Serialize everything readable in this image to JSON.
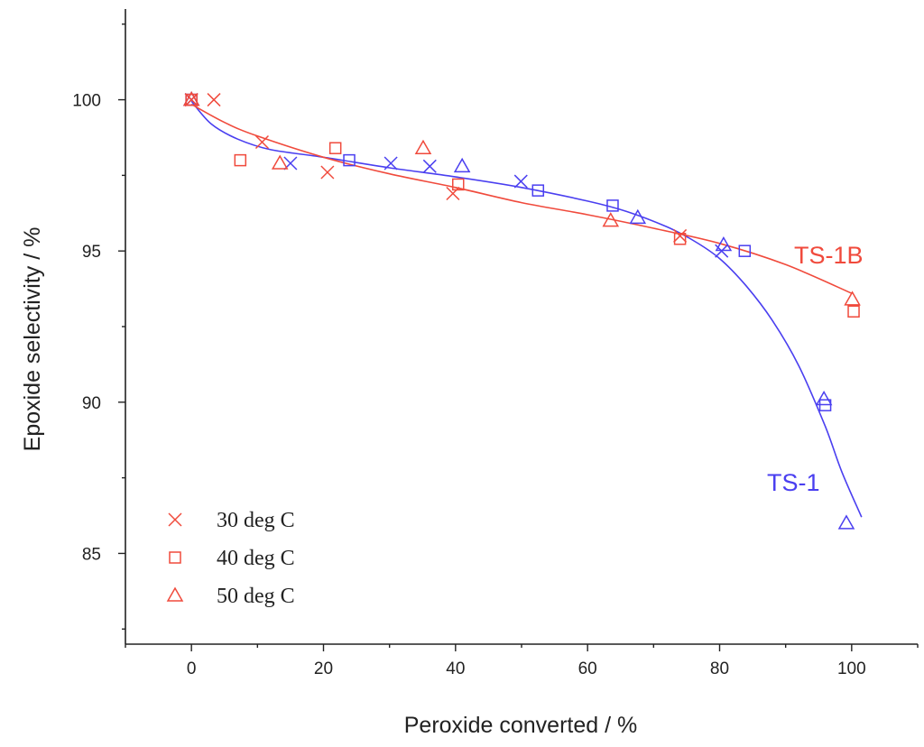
{
  "chart_data": {
    "type": "scatter",
    "title": "",
    "xlabel": "Peroxide converted / %",
    "ylabel": "Epoxide selectivity / %",
    "xlim": [
      -10,
      110
    ],
    "ylim": [
      82,
      103
    ],
    "xticks": [
      0,
      20,
      40,
      60,
      80,
      100
    ],
    "yticks": [
      85,
      90,
      95,
      100
    ],
    "grid": false,
    "legend_position": "bottom-left",
    "legend": [
      {
        "label": "30 deg C",
        "marker": "x"
      },
      {
        "label": "40 deg C",
        "marker": "square"
      },
      {
        "label": "50 deg C",
        "marker": "triangle"
      }
    ],
    "colors": {
      "TS-1B": "#f04a3c",
      "TS-1": "#4a3ff0",
      "axis": "#222222"
    },
    "series": [
      {
        "name": "TS-1B",
        "label": "TS-1B",
        "points": {
          "30 deg C": [
            [
              0,
              100
            ],
            [
              3.4,
              100
            ],
            [
              10.7,
              98.6
            ],
            [
              20.6,
              97.6
            ],
            [
              39.6,
              96.9
            ],
            [
              74,
              95.5
            ]
          ],
          "40 deg C": [
            [
              0,
              100
            ],
            [
              7.4,
              98
            ],
            [
              21.8,
              98.4
            ],
            [
              40.4,
              97.2
            ],
            [
              74,
              95.4
            ],
            [
              100.3,
              93
            ]
          ],
          "50 deg C": [
            [
              0,
              100
            ],
            [
              13.4,
              97.9
            ],
            [
              35.1,
              98.4
            ],
            [
              63.5,
              96
            ],
            [
              100.1,
              93.4
            ]
          ]
        },
        "fit": [
          [
            0,
            99.85
          ],
          [
            5,
            99.25
          ],
          [
            10,
            98.8
          ],
          [
            20,
            98.1
          ],
          [
            30,
            97.55
          ],
          [
            40,
            97.1
          ],
          [
            50,
            96.6
          ],
          [
            60,
            96.2
          ],
          [
            70,
            95.75
          ],
          [
            80,
            95.25
          ],
          [
            90,
            94.55
          ],
          [
            100,
            93.6
          ]
        ]
      },
      {
        "name": "TS-1",
        "label": "TS-1",
        "points": {
          "30 deg C": [
            [
              0,
              100
            ],
            [
              15,
              97.9
            ],
            [
              30.2,
              97.9
            ],
            [
              36.1,
              97.8
            ],
            [
              49.9,
              97.3
            ],
            [
              80.3,
              95
            ]
          ],
          "40 deg C": [
            [
              0,
              100
            ],
            [
              23.9,
              98
            ],
            [
              52.5,
              97
            ],
            [
              63.8,
              96.5
            ],
            [
              83.8,
              95
            ],
            [
              96,
              89.9
            ]
          ],
          "50 deg C": [
            [
              0,
              100
            ],
            [
              41,
              97.8
            ],
            [
              67.6,
              96.1
            ],
            [
              80.6,
              95.2
            ],
            [
              95.8,
              90.1
            ],
            [
              99.2,
              86
            ]
          ]
        },
        "fit": [
          [
            0,
            99.95
          ],
          [
            3,
            99.2
          ],
          [
            7,
            98.7
          ],
          [
            12,
            98.35
          ],
          [
            20,
            98.1
          ],
          [
            30,
            97.75
          ],
          [
            40,
            97.45
          ],
          [
            50,
            97.1
          ],
          [
            60,
            96.65
          ],
          [
            66,
            96.3
          ],
          [
            72,
            95.8
          ],
          [
            76,
            95.35
          ],
          [
            80,
            94.75
          ],
          [
            84,
            93.85
          ],
          [
            88,
            92.7
          ],
          [
            92,
            91.2
          ],
          [
            96,
            89.2
          ],
          [
            98.5,
            87.7
          ],
          [
            101.5,
            86.2
          ]
        ]
      }
    ]
  }
}
